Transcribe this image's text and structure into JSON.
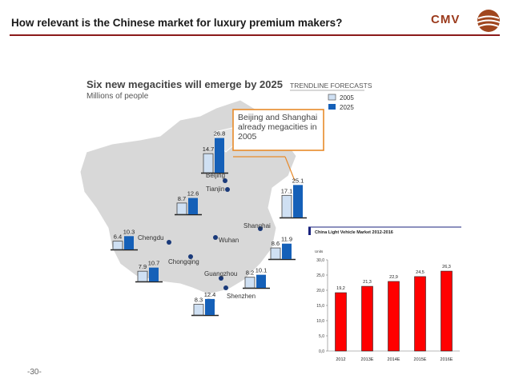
{
  "header": {
    "title": "How relevant is the Chinese market for luxury premium makers?",
    "logo_text": "CMV",
    "accent_color": "#8b1a1a"
  },
  "footer": {
    "page_number": "-30-"
  },
  "map_panel": {
    "title": "Six new megacities will emerge by 2025",
    "subtitle": "Millions of people",
    "legend_title": "TRENDLINE FORECASTS",
    "legend": [
      {
        "label": "2005",
        "color": "#cfe0f3"
      },
      {
        "label": "2025",
        "color": "#1560b8"
      }
    ],
    "callout": "Beijing and Shanghai already megacities in 2005",
    "callout_color": "#e88a2a",
    "map_color": "#d8d8d8",
    "labels": [
      "Beijing",
      "Tianjin",
      "Chengdu",
      "Chongqing",
      "Wuhan",
      "Shanghai",
      "Guangzhou",
      "Shenzhen"
    ]
  },
  "chart_data": [
    {
      "type": "bar",
      "title": "Six new megacities will emerge by 2025",
      "subtitle": "Millions of people",
      "legend_title": "TRENDLINE FORECASTS",
      "series": [
        {
          "name": "2005",
          "values": [
            14.7,
            8.7,
            6.4,
            7.9,
            8.3,
            8.2,
            8.6,
            17.1
          ]
        },
        {
          "name": "2025",
          "values": [
            26.8,
            12.6,
            10.3,
            10.7,
            12.4,
            10.1,
            11.9,
            25.1
          ]
        }
      ],
      "value_labels": [
        [
          "14.7",
          "26.8"
        ],
        [
          "8.7",
          "12.6"
        ],
        [
          "6.4",
          "10.3"
        ],
        [
          "7.9",
          "10.7"
        ],
        [
          "8.3",
          "12.4"
        ],
        [
          "8.2",
          "10.1"
        ],
        [
          "8.6",
          "11.9"
        ],
        [
          "17.1",
          "25.1"
        ]
      ]
    },
    {
      "type": "bar",
      "title": "China Light Vehicle Market 2012-2016",
      "ylabel": "Units",
      "categories": [
        "2012",
        "2013E",
        "2014E",
        "2015E",
        "2016E"
      ],
      "values": [
        19.2,
        21.3,
        22.9,
        24.5,
        26.3
      ],
      "value_labels": [
        "19,2",
        "21,3",
        "22,9",
        "24,5",
        "26,3"
      ],
      "ylim": [
        0,
        30
      ],
      "yticks": [
        "0,0",
        "5,0",
        "10,0",
        "15,0",
        "20,0",
        "25,0",
        "30,0"
      ],
      "bar_color": "#ff0000",
      "grid": false
    }
  ]
}
